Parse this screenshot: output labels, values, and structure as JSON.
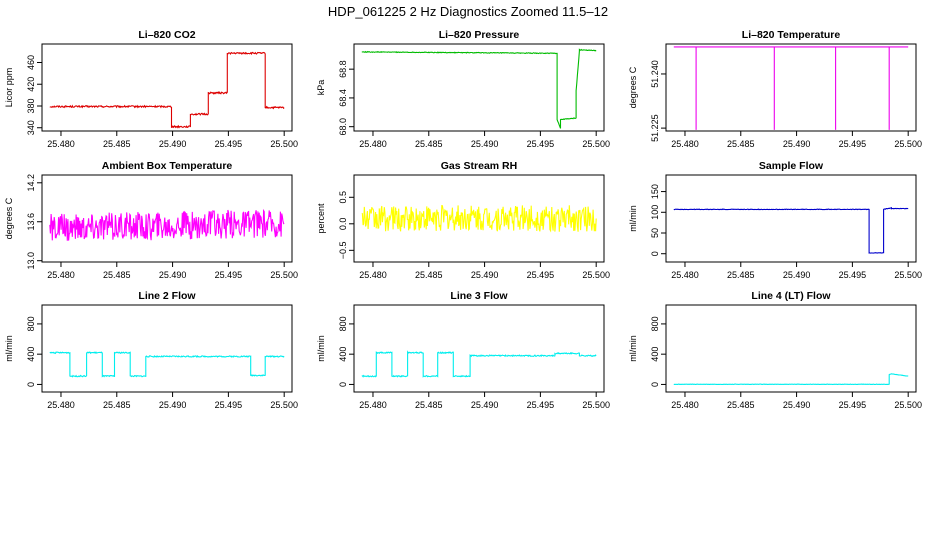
{
  "title": "HDP_061225  2 Hz Diagnostics Zoomed 11.5–12",
  "xlim": [
    25.4783,
    25.5007
  ],
  "xticks": [
    "25.480",
    "25.485",
    "25.490",
    "25.495",
    "25.500"
  ],
  "chart_data": [
    {
      "type": "line",
      "title": "Li–820 CO2",
      "ylabel": "Licor ppm",
      "color": "#dd0000",
      "ylim": [
        334,
        494
      ],
      "yticks": [
        340,
        380,
        420,
        460
      ],
      "noise": 1.5,
      "x": [
        25.479,
        25.4899,
        25.4899,
        25.4916,
        25.4916,
        25.4932,
        25.4932,
        25.4949,
        25.4949,
        25.4983,
        25.4983,
        25.5
      ],
      "values": [
        379,
        379,
        342,
        342,
        365,
        365,
        404,
        404,
        477,
        477,
        377,
        377
      ]
    },
    {
      "type": "line",
      "title": "Li–820 Pressure",
      "ylabel": "kPa",
      "color": "#00bb00",
      "ylim": [
        67.94,
        69.15
      ],
      "yticks": [
        "68.0",
        "68.4",
        "68.8"
      ],
      "noise": 0.005,
      "x": [
        25.479,
        25.4965,
        25.4965,
        25.4968,
        25.4968,
        25.4982,
        25.4982,
        25.4985,
        25.4985,
        25.5
      ],
      "values": [
        69.04,
        69.02,
        68.1,
        67.98,
        68.1,
        68.12,
        68.5,
        69.05,
        69.07,
        69.06
      ]
    },
    {
      "type": "line",
      "title": "Li–820 Temperature",
      "ylabel": "degrees C",
      "color": "#ee00ee",
      "ylim": [
        51.2242,
        51.2483
      ],
      "yticks": [
        "51.225",
        "51.240"
      ],
      "noise": 0,
      "x": [
        25.479,
        25.481,
        25.481,
        25.481,
        25.488,
        25.488,
        25.488,
        25.4935,
        25.4935,
        25.4935,
        25.4983,
        25.4983,
        25.4983,
        25.5
      ],
      "values": [
        51.2475,
        51.2475,
        51.2245,
        51.2475,
        51.2475,
        51.2245,
        51.2475,
        51.2475,
        51.2245,
        51.2475,
        51.2475,
        51.2245,
        51.2475,
        51.2475
      ]
    },
    {
      "type": "line",
      "title": "Ambient Box Temperature",
      "ylabel": "degrees C",
      "color": "#ff00ff",
      "ylim": [
        12.98,
        14.32
      ],
      "yticks": [
        "13.0",
        "13.6",
        "14.2"
      ],
      "noise": 0.22,
      "x": [
        25.479,
        25.5
      ],
      "values": [
        13.5,
        13.58
      ]
    },
    {
      "type": "line",
      "title": "Gas Stream RH",
      "ylabel": "percent",
      "color": "#ffff00",
      "ylim": [
        -0.72,
        0.92
      ],
      "yticks": [
        "−0.5",
        "0.0",
        "0.5"
      ],
      "noise": 0.25,
      "x": [
        25.479,
        25.5
      ],
      "values": [
        0.1,
        0.1
      ]
    },
    {
      "type": "line",
      "title": "Sample Flow",
      "ylabel": "ml/min",
      "color": "#0000cc",
      "ylim": [
        -20,
        190
      ],
      "yticks": [
        0,
        50,
        100,
        150
      ],
      "noise": 0.6,
      "x": [
        25.479,
        25.4965,
        25.4965,
        25.4978,
        25.4978,
        25.4985,
        25.4985,
        25.5
      ],
      "values": [
        107,
        107,
        2,
        2,
        107,
        111,
        109,
        109
      ]
    },
    {
      "type": "line",
      "title": "Line 2 Flow",
      "ylabel": "ml/min",
      "color": "#00eeee",
      "ylim": [
        -100,
        1050
      ],
      "yticks": [
        0,
        400,
        800
      ],
      "noise": 8,
      "x": [
        25.479,
        25.4808,
        25.4808,
        25.4823,
        25.4823,
        25.4837,
        25.4837,
        25.4848,
        25.4848,
        25.4862,
        25.4862,
        25.4876,
        25.4876,
        25.4892,
        25.4892,
        25.497,
        25.497,
        25.4983,
        25.4983,
        25.5
      ],
      "values": [
        420,
        420,
        110,
        110,
        420,
        420,
        110,
        110,
        420,
        420,
        110,
        110,
        370,
        370,
        370,
        370,
        120,
        120,
        370,
        370
      ]
    },
    {
      "type": "line",
      "title": "Line 3 Flow",
      "ylabel": "ml/min",
      "color": "#00eeee",
      "ylim": [
        -100,
        1050
      ],
      "yticks": [
        0,
        400,
        800
      ],
      "noise": 8,
      "x": [
        25.479,
        25.4803,
        25.4803,
        25.4817,
        25.4817,
        25.4831,
        25.4831,
        25.4845,
        25.4845,
        25.4858,
        25.4858,
        25.4872,
        25.4872,
        25.4887,
        25.4887,
        25.4963,
        25.4963,
        25.4985,
        25.4985,
        25.5
      ],
      "values": [
        110,
        110,
        420,
        420,
        110,
        110,
        420,
        420,
        110,
        110,
        420,
        420,
        110,
        110,
        380,
        380,
        410,
        410,
        380,
        380
      ]
    },
    {
      "type": "line",
      "title": "Line 4 (LT) Flow",
      "ylabel": "ml/min",
      "color": "#00eeee",
      "ylim": [
        -100,
        1050
      ],
      "yticks": [
        0,
        400,
        800
      ],
      "noise": 2,
      "x": [
        25.479,
        25.4983,
        25.4983,
        25.4985,
        25.5
      ],
      "values": [
        2,
        2,
        130,
        140,
        110
      ]
    }
  ]
}
